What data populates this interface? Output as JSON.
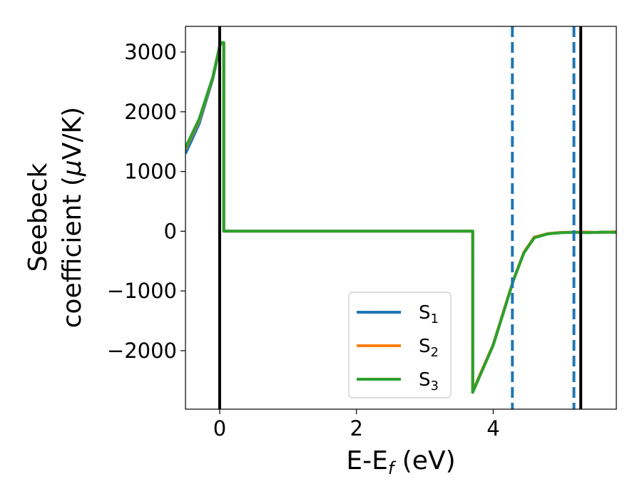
{
  "chart_data": {
    "type": "line",
    "title": "",
    "xlabel": "E-E",
    "xlabel_sub": "f",
    "xlabel_unit": " (eV)",
    "ylabel_line1": "Seebeck",
    "ylabel_line2": "coefficient  (",
    "ylabel_mu": "μ",
    "ylabel_unit": "V/K)",
    "xlim": [
      -0.5,
      5.8
    ],
    "ylim": [
      -2980,
      3430
    ],
    "xticks": [
      0,
      2,
      4
    ],
    "xtick_labels": [
      "0",
      "2",
      "4"
    ],
    "yticks": [
      -2000,
      -1000,
      0,
      1000,
      2000,
      3000
    ],
    "ytick_labels": [
      "−2000",
      "−1000",
      "0",
      "1000",
      "2000",
      "3000"
    ],
    "grid": false,
    "legend_position": "lower-center",
    "series": [
      {
        "name": "S",
        "name_sub": "1",
        "color": "#1f77b4",
        "points": [
          [
            -0.5,
            1300
          ],
          [
            -0.3,
            1800
          ],
          [
            -0.1,
            2550
          ],
          [
            0.0,
            3070
          ],
          [
            0.01,
            3140
          ],
          [
            0.06,
            3140
          ],
          [
            0.06,
            0
          ],
          [
            3.7,
            0
          ],
          [
            3.7,
            -2680
          ],
          [
            4.0,
            -1900
          ],
          [
            4.3,
            -800
          ],
          [
            4.45,
            -350
          ],
          [
            4.6,
            -100
          ],
          [
            4.8,
            -40
          ],
          [
            5.0,
            -20
          ],
          [
            5.3,
            -15
          ],
          [
            5.5,
            -20
          ],
          [
            5.8,
            -10
          ]
        ]
      },
      {
        "name": "S",
        "name_sub": "2",
        "color": "#ff7f0e",
        "points": [
          [
            -0.5,
            1380
          ],
          [
            -0.3,
            1860
          ],
          [
            -0.1,
            2570
          ],
          [
            0.0,
            3090
          ],
          [
            0.01,
            3150
          ],
          [
            0.06,
            3150
          ],
          [
            0.06,
            0
          ],
          [
            3.7,
            0
          ],
          [
            3.7,
            -2680
          ],
          [
            4.0,
            -1900
          ],
          [
            4.3,
            -800
          ],
          [
            4.45,
            -350
          ],
          [
            4.6,
            -100
          ],
          [
            4.8,
            -40
          ],
          [
            5.0,
            -20
          ],
          [
            5.3,
            -15
          ],
          [
            5.5,
            -20
          ],
          [
            5.8,
            -10
          ]
        ]
      },
      {
        "name": "S",
        "name_sub": "3",
        "color": "#2ca02c",
        "points": [
          [
            -0.5,
            1400
          ],
          [
            -0.3,
            1880
          ],
          [
            -0.1,
            2580
          ],
          [
            0.0,
            3100
          ],
          [
            0.01,
            3160
          ],
          [
            0.06,
            3160
          ],
          [
            0.06,
            0
          ],
          [
            3.7,
            0
          ],
          [
            3.7,
            -2700
          ],
          [
            4.0,
            -1910
          ],
          [
            4.3,
            -810
          ],
          [
            4.45,
            -360
          ],
          [
            4.6,
            -110
          ],
          [
            4.8,
            -45
          ],
          [
            5.0,
            -25
          ],
          [
            5.2,
            -20
          ],
          [
            5.4,
            -25
          ],
          [
            5.6,
            -15
          ],
          [
            5.8,
            -20
          ]
        ]
      }
    ],
    "vertical_lines": [
      {
        "x": 0.0,
        "color": "#000000",
        "style": "solid"
      },
      {
        "x": 5.28,
        "color": "#000000",
        "style": "solid"
      },
      {
        "x": 4.28,
        "color": "#1f77b4",
        "style": "dashed"
      },
      {
        "x": 5.18,
        "color": "#1f77b4",
        "style": "dashed"
      }
    ]
  }
}
